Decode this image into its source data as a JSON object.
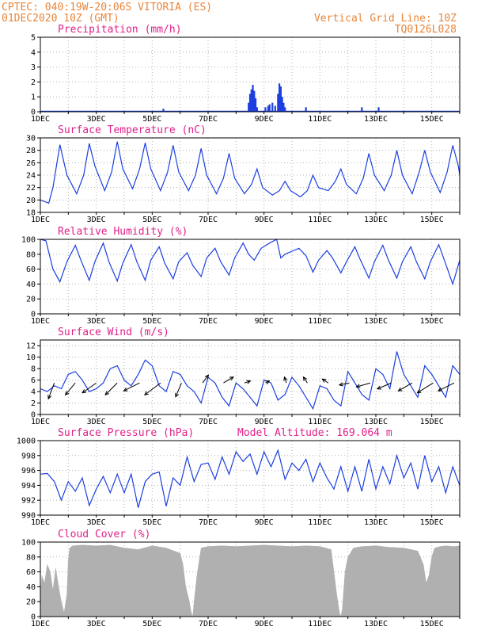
{
  "header": {
    "line1_left": "CPTEC:  040:19W-20:06S  VITORIA (ES)",
    "line2_left": "01DEC2020 10Z (GMT)",
    "line1_right": "Vertical Grid Line: 10Z",
    "line2_right": "TQ0126L028"
  },
  "colors": {
    "series": "#1c3fe0",
    "cloud": "#b0b0b0",
    "title": "#e0218a",
    "header": "#e8853a"
  },
  "x_axis": {
    "start": "01DEC2020 10Z",
    "end": "16DEC2020 10Z",
    "labels": [
      {
        "day": 1,
        "text": "1DEC"
      },
      {
        "day": 3,
        "text": "3DEC"
      },
      {
        "day": 5,
        "text": "5DEC"
      },
      {
        "day": 7,
        "text": "7DEC"
      },
      {
        "day": 9,
        "text": "9DEC"
      },
      {
        "day": 11,
        "text": "11DEC"
      },
      {
        "day": 13,
        "text": "13DEC"
      },
      {
        "day": 15,
        "text": "15DEC"
      }
    ]
  },
  "chart_data": [
    {
      "type": "bar",
      "title": "Precipitation (mm/h)",
      "ylim": [
        0,
        5
      ],
      "yticks": [
        "0",
        "1",
        "2",
        "3",
        "4",
        "5"
      ],
      "x_day": [
        5.4,
        8.45,
        8.5,
        8.55,
        8.6,
        8.65,
        8.7,
        8.75,
        9.05,
        9.15,
        9.2,
        9.3,
        9.4,
        9.5,
        9.55,
        9.6,
        9.65,
        9.7,
        9.75,
        10.5,
        12.5,
        13.1
      ],
      "values": [
        0.2,
        0.6,
        1.2,
        1.5,
        1.8,
        1.4,
        0.9,
        0.3,
        0.3,
        0.4,
        0.5,
        0.6,
        0.4,
        1.2,
        1.9,
        1.7,
        1.0,
        0.6,
        0.3,
        0.3,
        0.3,
        0.3
      ]
    },
    {
      "type": "line",
      "title": "Surface Temperature (nC)",
      "ylim": [
        18,
        30
      ],
      "yticks": [
        "18",
        "20",
        "22",
        "24",
        "26",
        "28",
        "30"
      ],
      "x_day": [
        1.0,
        1.3,
        1.45,
        1.7,
        1.95,
        2.3,
        2.55,
        2.75,
        2.95,
        3.3,
        3.55,
        3.75,
        3.95,
        4.3,
        4.55,
        4.75,
        4.95,
        5.3,
        5.55,
        5.75,
        5.95,
        6.3,
        6.55,
        6.75,
        6.95,
        7.3,
        7.55,
        7.75,
        7.95,
        8.3,
        8.55,
        8.75,
        8.95,
        9.3,
        9.55,
        9.75,
        9.95,
        10.3,
        10.55,
        10.75,
        10.95,
        11.3,
        11.55,
        11.75,
        11.95,
        12.3,
        12.55,
        12.75,
        12.95,
        13.3,
        13.55,
        13.75,
        13.95,
        14.3,
        14.55,
        14.75,
        14.95,
        15.3,
        15.55,
        15.75,
        15.95,
        16.0
      ],
      "values": [
        20.0,
        19.5,
        22.0,
        28.9,
        24.0,
        21.0,
        24.0,
        29.1,
        25.5,
        21.5,
        24.5,
        29.4,
        25.0,
        21.8,
        25.0,
        29.2,
        25.0,
        21.5,
        24.5,
        28.8,
        24.5,
        21.5,
        24.0,
        28.3,
        24.0,
        21.0,
        23.5,
        27.5,
        23.5,
        21.0,
        22.5,
        25.0,
        22.0,
        20.8,
        21.5,
        23.0,
        21.5,
        20.5,
        21.5,
        24.0,
        22.0,
        21.5,
        23.0,
        25.0,
        22.5,
        21.0,
        23.5,
        27.5,
        24.0,
        21.5,
        24.0,
        28.0,
        24.0,
        21.0,
        24.5,
        28.0,
        24.5,
        21.2,
        24.5,
        28.8,
        25.5,
        24.0
      ]
    },
    {
      "type": "line",
      "title": "Relative Humidity (%)",
      "ylim": [
        0,
        100
      ],
      "yticks": [
        "0",
        "20",
        "40",
        "60",
        "80",
        "100"
      ],
      "x_day": [
        1.0,
        1.2,
        1.45,
        1.7,
        1.95,
        2.25,
        2.45,
        2.75,
        2.95,
        3.25,
        3.45,
        3.75,
        3.95,
        4.25,
        4.45,
        4.75,
        4.95,
        5.25,
        5.45,
        5.75,
        5.95,
        6.25,
        6.45,
        6.75,
        6.95,
        7.25,
        7.45,
        7.75,
        7.95,
        8.25,
        8.45,
        8.65,
        8.9,
        9.2,
        9.45,
        9.6,
        9.75,
        10.0,
        10.25,
        10.5,
        10.75,
        10.95,
        11.25,
        11.45,
        11.75,
        11.95,
        12.25,
        12.45,
        12.75,
        12.95,
        13.25,
        13.45,
        13.75,
        13.95,
        14.25,
        14.45,
        14.75,
        14.95,
        15.25,
        15.45,
        15.75,
        16.0
      ],
      "values": [
        100,
        98,
        60,
        43,
        70,
        92,
        72,
        45,
        70,
        95,
        70,
        44,
        68,
        93,
        70,
        45,
        72,
        90,
        68,
        47,
        70,
        82,
        65,
        50,
        75,
        88,
        70,
        52,
        75,
        95,
        80,
        72,
        88,
        95,
        100,
        75,
        80,
        84,
        88,
        78,
        56,
        72,
        85,
        75,
        55,
        70,
        90,
        72,
        48,
        70,
        92,
        72,
        48,
        70,
        90,
        70,
        47,
        70,
        93,
        72,
        40,
        72
      ]
    },
    {
      "type": "line",
      "title": "Surface Wind (m/s)",
      "ylim": [
        0,
        13
      ],
      "yticks": [
        "0",
        "2",
        "4",
        "6",
        "8",
        "10",
        "12"
      ],
      "x_day": [
        1.0,
        1.25,
        1.5,
        1.75,
        2.0,
        2.25,
        2.5,
        2.75,
        3.0,
        3.25,
        3.5,
        3.75,
        4.0,
        4.25,
        4.5,
        4.75,
        5.0,
        5.25,
        5.5,
        5.75,
        6.0,
        6.25,
        6.5,
        6.75,
        7.0,
        7.25,
        7.5,
        7.75,
        8.0,
        8.25,
        8.5,
        8.75,
        9.0,
        9.25,
        9.5,
        9.75,
        10.0,
        10.25,
        10.5,
        10.75,
        11.0,
        11.25,
        11.5,
        11.75,
        12.0,
        12.25,
        12.5,
        12.75,
        13.0,
        13.25,
        13.5,
        13.75,
        14.0,
        14.25,
        14.5,
        14.75,
        15.0,
        15.25,
        15.5,
        15.75,
        16.0
      ],
      "values": [
        4.5,
        4.0,
        5.0,
        4.5,
        7.0,
        7.5,
        6.0,
        4.0,
        4.5,
        5.5,
        8.0,
        8.5,
        6.0,
        5.0,
        7.0,
        9.5,
        8.5,
        5.0,
        4.0,
        7.5,
        7.0,
        5.0,
        4.0,
        2.0,
        6.5,
        5.5,
        3.0,
        1.5,
        5.5,
        4.5,
        3.0,
        1.5,
        6.0,
        5.5,
        2.5,
        3.5,
        6.5,
        5.0,
        3.0,
        1.0,
        5.0,
        4.5,
        2.5,
        1.5,
        7.5,
        5.5,
        3.5,
        2.5,
        8.0,
        7.0,
        4.5,
        11.0,
        7.0,
        5.0,
        3.0,
        8.5,
        7.0,
        5.0,
        3.0,
        8.5,
        7.0
      ],
      "arrows": {
        "x_day": [
          1.5,
          2.25,
          3.0,
          3.75,
          4.55,
          5.3,
          6.05,
          6.8,
          7.55,
          8.3,
          9.05,
          9.8,
          10.55,
          11.3,
          12.05,
          12.8,
          13.55,
          14.3,
          15.05,
          15.8
        ],
        "u": [
          -1.5,
          -2.5,
          -3.5,
          -3.0,
          -4.0,
          -4.0,
          -1.5,
          1.5,
          2.5,
          1.5,
          1.0,
          -0.5,
          -1.0,
          -1.5,
          -2.5,
          -3.5,
          -3.5,
          -3.5,
          -4.0,
          -4.0
        ],
        "v": [
          -4.0,
          -3.0,
          -2.5,
          -3.0,
          -2.0,
          -3.0,
          -3.5,
          2.0,
          1.5,
          0.5,
          0.5,
          1.5,
          1.5,
          1.0,
          -0.5,
          -1.0,
          -1.5,
          -2.0,
          -2.5,
          -2.0
        ]
      }
    },
    {
      "type": "line",
      "title": "Surface Pressure (hPa)",
      "annotation": "Model Altitude: 169.064 m",
      "ylim": [
        990,
        1000
      ],
      "yticks": [
        "990",
        "992",
        "994",
        "996",
        "998",
        "1000"
      ],
      "x_day": [
        1.0,
        1.25,
        1.5,
        1.75,
        2.0,
        2.25,
        2.5,
        2.75,
        3.0,
        3.25,
        3.5,
        3.75,
        4.0,
        4.25,
        4.5,
        4.75,
        5.0,
        5.25,
        5.5,
        5.75,
        6.0,
        6.25,
        6.5,
        6.75,
        7.0,
        7.25,
        7.5,
        7.75,
        8.0,
        8.25,
        8.5,
        8.75,
        9.0,
        9.25,
        9.5,
        9.75,
        10.0,
        10.25,
        10.5,
        10.75,
        11.0,
        11.25,
        11.5,
        11.75,
        12.0,
        12.25,
        12.5,
        12.75,
        13.0,
        13.25,
        13.5,
        13.75,
        14.0,
        14.25,
        14.5,
        14.75,
        15.0,
        15.25,
        15.5,
        15.75,
        16.0
      ],
      "values": [
        995.5,
        995.6,
        994.5,
        992.0,
        994.5,
        993.2,
        995.0,
        991.3,
        993.5,
        995.2,
        993.0,
        995.5,
        993.0,
        995.5,
        991.0,
        994.5,
        995.5,
        995.8,
        991.2,
        995.0,
        994.0,
        997.8,
        994.5,
        996.8,
        997.0,
        994.8,
        997.8,
        995.5,
        998.5,
        997.2,
        998.2,
        995.5,
        998.5,
        996.5,
        998.7,
        994.8,
        997.0,
        996.0,
        997.5,
        994.5,
        997.0,
        995.0,
        993.5,
        996.5,
        993.2,
        996.5,
        993.2,
        997.5,
        993.5,
        996.5,
        994.2,
        998.0,
        995.0,
        997.0,
        993.5,
        998.0,
        994.5,
        996.5,
        993.0,
        996.5,
        994.0
      ]
    },
    {
      "type": "area",
      "title": "Cloud Cover (%)",
      "ylim": [
        0,
        100
      ],
      "yticks": [
        "0",
        "20",
        "40",
        "60",
        "80",
        "100"
      ],
      "x_day": [
        1.0,
        1.05,
        1.15,
        1.25,
        1.35,
        1.45,
        1.55,
        1.65,
        1.75,
        1.85,
        1.95,
        2.0,
        2.05,
        2.15,
        2.5,
        3.0,
        3.5,
        4.0,
        4.5,
        5.0,
        5.5,
        6.0,
        6.1,
        6.2,
        6.3,
        6.4,
        6.45,
        6.5,
        6.6,
        6.75,
        7.0,
        7.5,
        8.0,
        8.5,
        9.0,
        9.5,
        10.0,
        10.5,
        11.0,
        11.4,
        11.5,
        11.6,
        11.7,
        11.75,
        11.8,
        11.9,
        12.0,
        12.2,
        12.5,
        13.0,
        13.5,
        14.0,
        14.5,
        14.7,
        14.8,
        14.9,
        15.0,
        15.1,
        15.3,
        15.5,
        15.8,
        16.0
      ],
      "values": [
        20,
        55,
        45,
        70,
        60,
        35,
        65,
        40,
        20,
        5,
        30,
        75,
        92,
        95,
        96,
        95,
        96,
        92,
        90,
        95,
        92,
        85,
        70,
        40,
        25,
        5,
        0,
        20,
        55,
        92,
        94,
        95,
        94,
        95,
        96,
        95,
        94,
        95,
        94,
        90,
        60,
        30,
        5,
        0,
        10,
        60,
        80,
        92,
        94,
        95,
        93,
        92,
        88,
        70,
        45,
        55,
        80,
        92,
        94,
        95,
        94,
        95
      ]
    }
  ]
}
